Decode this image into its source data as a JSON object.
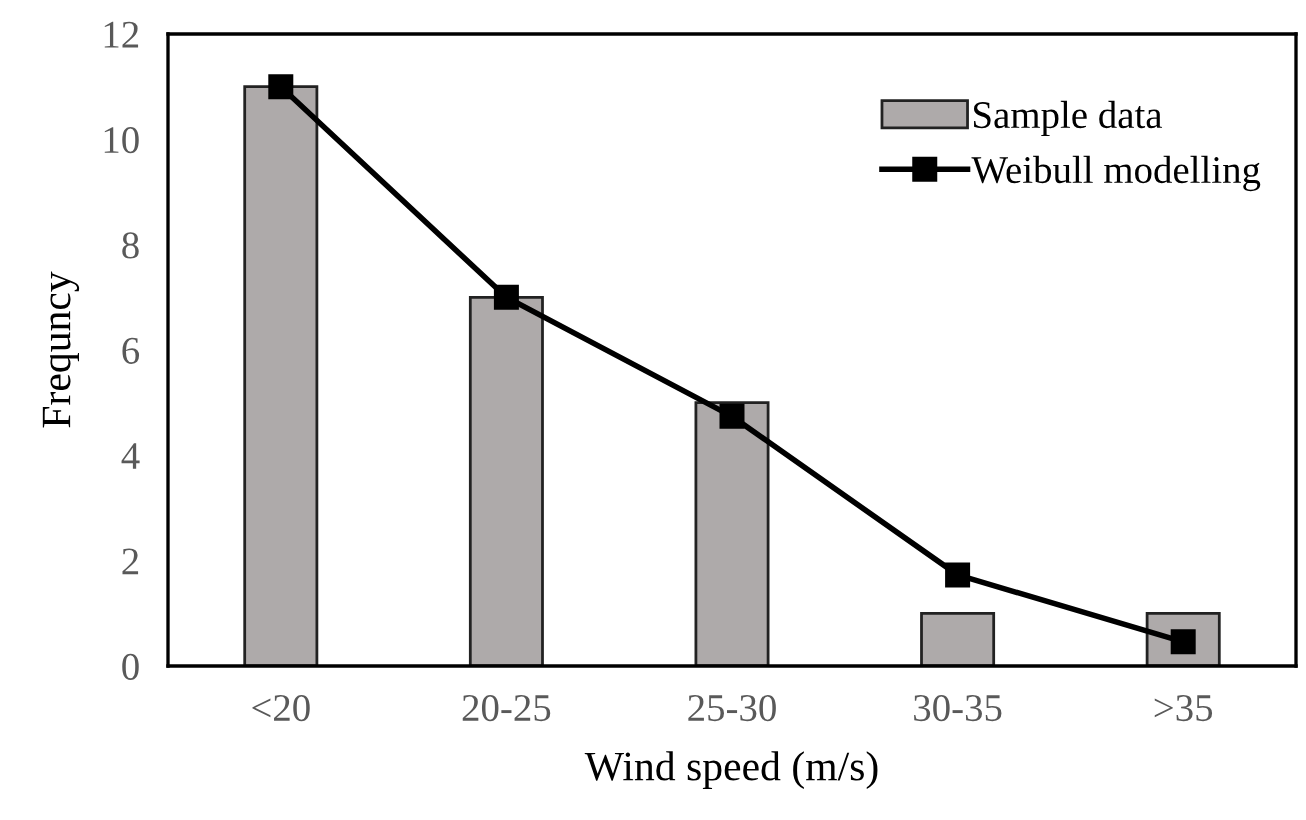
{
  "chart_data": {
    "type": "bar",
    "xlabel": "Wind speed (m/s)",
    "ylabel": "Frequncy",
    "categories": [
      "<20",
      "20-25",
      "25-30",
      "30-35",
      ">35"
    ],
    "series": [
      {
        "name": "Sample data",
        "color": "#aeaaaa",
        "values": [
          11,
          7,
          5,
          1,
          1
        ]
      },
      {
        "name": "Weibull modelling",
        "type": "line",
        "color": "#000000",
        "marker": "square",
        "values": [
          11,
          7,
          4.74,
          1.73,
          0.46
        ]
      }
    ],
    "ylim": [
      0,
      12
    ],
    "yticks": [
      0,
      2,
      4,
      6,
      8,
      10,
      12
    ],
    "grid": false,
    "legend": "top right"
  }
}
